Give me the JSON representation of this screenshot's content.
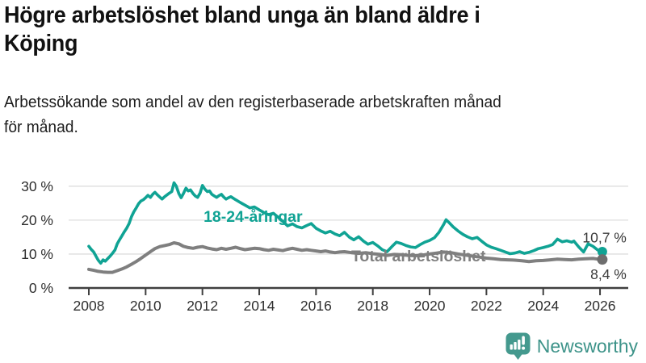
{
  "header": {
    "title_lines": [
      "Högre arbetslöshet bland unga än bland äldre i",
      "Köping"
    ],
    "subtitle_lines": [
      "Arbetssökande som andel av den registerbaserade arbetskraften månad",
      "för månad."
    ]
  },
  "footer": {
    "brand": "Newsworthy",
    "brand_color": "#3D9389",
    "logo_icon": "bar-chart-speech-bubble-icon"
  },
  "chart_data": {
    "type": "line",
    "title": "Högre arbetslöshet bland unga än bland äldre i Köping",
    "xlabel": "",
    "ylabel": "",
    "unit": "%",
    "grid": "horizontal",
    "xlim": [
      2007.3,
      2027.0
    ],
    "ylim": [
      0,
      32
    ],
    "x_ticks": [
      2008,
      2010,
      2012,
      2014,
      2016,
      2018,
      2020,
      2022,
      2024,
      2026
    ],
    "x_tick_labels": [
      "2008",
      "2010",
      "2012",
      "2014",
      "2016",
      "2018",
      "2020",
      "2022",
      "2024",
      "2026"
    ],
    "y_ticks": [
      0,
      10,
      20,
      30
    ],
    "y_tick_labels": [
      "0 %",
      "10 %",
      "20 %",
      "30 %"
    ],
    "colors": {
      "grid": "#dedede",
      "axis": "#3f3f3f",
      "tick_text": "#2e2e2e",
      "end_label_text": "#3a3a3a"
    },
    "series": [
      {
        "name": "18-24-åringar",
        "color": "#10A394",
        "dot_color": "#10A394",
        "end_label": "10,7 %",
        "last_value": 10.7,
        "label_anchor": {
          "year": 2012.04,
          "pct": 19.5
        },
        "points": [
          [
            2008.0,
            12.3
          ],
          [
            2008.08,
            11.4
          ],
          [
            2008.17,
            10.6
          ],
          [
            2008.25,
            9.4
          ],
          [
            2008.33,
            8.2
          ],
          [
            2008.42,
            7.3
          ],
          [
            2008.5,
            8.3
          ],
          [
            2008.58,
            7.9
          ],
          [
            2008.67,
            8.7
          ],
          [
            2008.75,
            9.4
          ],
          [
            2008.83,
            10.2
          ],
          [
            2008.92,
            11.2
          ],
          [
            2009.0,
            13.0
          ],
          [
            2009.08,
            14.2
          ],
          [
            2009.17,
            15.4
          ],
          [
            2009.25,
            16.6
          ],
          [
            2009.33,
            17.6
          ],
          [
            2009.42,
            19.0
          ],
          [
            2009.5,
            21.0
          ],
          [
            2009.58,
            22.4
          ],
          [
            2009.67,
            23.6
          ],
          [
            2009.75,
            24.8
          ],
          [
            2009.83,
            25.6
          ],
          [
            2009.92,
            26.0
          ],
          [
            2010.0,
            26.6
          ],
          [
            2010.08,
            27.3
          ],
          [
            2010.17,
            26.7
          ],
          [
            2010.25,
            27.6
          ],
          [
            2010.33,
            28.2
          ],
          [
            2010.42,
            27.4
          ],
          [
            2010.5,
            26.8
          ],
          [
            2010.58,
            26.2
          ],
          [
            2010.67,
            26.9
          ],
          [
            2010.75,
            27.4
          ],
          [
            2010.83,
            27.9
          ],
          [
            2010.92,
            28.4
          ],
          [
            2011.0,
            31.0
          ],
          [
            2011.08,
            30.0
          ],
          [
            2011.17,
            27.8
          ],
          [
            2011.25,
            26.6
          ],
          [
            2011.33,
            27.8
          ],
          [
            2011.42,
            29.4
          ],
          [
            2011.5,
            28.6
          ],
          [
            2011.58,
            28.9
          ],
          [
            2011.67,
            27.8
          ],
          [
            2011.75,
            27.1
          ],
          [
            2011.83,
            26.7
          ],
          [
            2011.92,
            28.0
          ],
          [
            2012.0,
            30.2
          ],
          [
            2012.08,
            29.2
          ],
          [
            2012.17,
            28.4
          ],
          [
            2012.25,
            28.6
          ],
          [
            2012.33,
            27.6
          ],
          [
            2012.42,
            27.1
          ],
          [
            2012.5,
            26.7
          ],
          [
            2012.58,
            27.2
          ],
          [
            2012.67,
            27.6
          ],
          [
            2012.75,
            26.8
          ],
          [
            2012.83,
            26.2
          ],
          [
            2012.92,
            26.6
          ],
          [
            2013.0,
            26.9
          ],
          [
            2013.17,
            26.0
          ],
          [
            2013.33,
            25.2
          ],
          [
            2013.5,
            24.4
          ],
          [
            2013.67,
            23.6
          ],
          [
            2013.83,
            23.9
          ],
          [
            2014.0,
            23.0
          ],
          [
            2014.17,
            22.2
          ],
          [
            2014.33,
            21.6
          ],
          [
            2014.5,
            22.0
          ],
          [
            2014.67,
            20.8
          ],
          [
            2014.83,
            19.6
          ],
          [
            2015.0,
            18.3
          ],
          [
            2015.17,
            18.9
          ],
          [
            2015.33,
            18.1
          ],
          [
            2015.5,
            17.7
          ],
          [
            2015.67,
            18.4
          ],
          [
            2015.83,
            19.0
          ],
          [
            2016.0,
            17.6
          ],
          [
            2016.17,
            16.8
          ],
          [
            2016.33,
            16.2
          ],
          [
            2016.5,
            16.7
          ],
          [
            2016.67,
            15.9
          ],
          [
            2016.83,
            15.4
          ],
          [
            2017.0,
            16.4
          ],
          [
            2017.17,
            15.0
          ],
          [
            2017.33,
            14.2
          ],
          [
            2017.5,
            15.1
          ],
          [
            2017.67,
            13.8
          ],
          [
            2017.83,
            12.9
          ],
          [
            2018.0,
            13.4
          ],
          [
            2018.17,
            12.4
          ],
          [
            2018.33,
            11.3
          ],
          [
            2018.5,
            10.7
          ],
          [
            2018.67,
            12.2
          ],
          [
            2018.83,
            13.5
          ],
          [
            2019.0,
            13.1
          ],
          [
            2019.17,
            12.5
          ],
          [
            2019.33,
            12.1
          ],
          [
            2019.5,
            11.9
          ],
          [
            2019.67,
            12.8
          ],
          [
            2019.83,
            13.5
          ],
          [
            2020.0,
            14.0
          ],
          [
            2020.17,
            14.8
          ],
          [
            2020.33,
            16.4
          ],
          [
            2020.5,
            18.8
          ],
          [
            2020.58,
            20.1
          ],
          [
            2020.67,
            19.4
          ],
          [
            2020.83,
            18.0
          ],
          [
            2021.0,
            16.8
          ],
          [
            2021.17,
            15.8
          ],
          [
            2021.33,
            15.1
          ],
          [
            2021.5,
            14.5
          ],
          [
            2021.67,
            14.9
          ],
          [
            2021.83,
            13.8
          ],
          [
            2022.0,
            12.7
          ],
          [
            2022.17,
            12.0
          ],
          [
            2022.33,
            11.6
          ],
          [
            2022.5,
            11.1
          ],
          [
            2022.67,
            10.6
          ],
          [
            2022.83,
            10.1
          ],
          [
            2023.0,
            10.3
          ],
          [
            2023.17,
            10.7
          ],
          [
            2023.33,
            10.2
          ],
          [
            2023.5,
            10.5
          ],
          [
            2023.67,
            11.0
          ],
          [
            2023.83,
            11.6
          ],
          [
            2024.0,
            11.9
          ],
          [
            2024.17,
            12.3
          ],
          [
            2024.33,
            12.8
          ],
          [
            2024.5,
            14.4
          ],
          [
            2024.67,
            13.6
          ],
          [
            2024.83,
            13.9
          ],
          [
            2025.0,
            13.5
          ],
          [
            2025.08,
            13.8
          ],
          [
            2025.25,
            12.1
          ],
          [
            2025.42,
            10.6
          ],
          [
            2025.58,
            13.0
          ],
          [
            2025.75,
            12.3
          ],
          [
            2025.92,
            11.2
          ],
          [
            2026.08,
            10.7
          ]
        ]
      },
      {
        "name": "Total arbetslöshet",
        "color": "#7F7F7F",
        "dot_color": "#6E6E6E",
        "end_label": "8,4 %",
        "last_value": 8.4,
        "label_anchor": {
          "year": 2017.24,
          "pct": 7.84
        },
        "points": [
          [
            2008.0,
            5.5
          ],
          [
            2008.17,
            5.2
          ],
          [
            2008.33,
            4.9
          ],
          [
            2008.5,
            4.7
          ],
          [
            2008.67,
            4.6
          ],
          [
            2008.83,
            4.6
          ],
          [
            2009.0,
            5.1
          ],
          [
            2009.17,
            5.6
          ],
          [
            2009.33,
            6.2
          ],
          [
            2009.5,
            7.0
          ],
          [
            2009.67,
            7.8
          ],
          [
            2009.83,
            8.7
          ],
          [
            2010.0,
            9.7
          ],
          [
            2010.17,
            10.7
          ],
          [
            2010.33,
            11.6
          ],
          [
            2010.5,
            12.2
          ],
          [
            2010.67,
            12.5
          ],
          [
            2010.83,
            12.8
          ],
          [
            2011.0,
            13.3
          ],
          [
            2011.17,
            13.0
          ],
          [
            2011.33,
            12.3
          ],
          [
            2011.5,
            11.9
          ],
          [
            2011.67,
            11.7
          ],
          [
            2011.83,
            12.0
          ],
          [
            2012.0,
            12.2
          ],
          [
            2012.17,
            11.8
          ],
          [
            2012.33,
            11.5
          ],
          [
            2012.5,
            11.3
          ],
          [
            2012.67,
            11.7
          ],
          [
            2012.83,
            11.4
          ],
          [
            2013.0,
            11.7
          ],
          [
            2013.17,
            12.0
          ],
          [
            2013.33,
            11.6
          ],
          [
            2013.5,
            11.3
          ],
          [
            2013.67,
            11.5
          ],
          [
            2013.83,
            11.7
          ],
          [
            2014.0,
            11.6
          ],
          [
            2014.17,
            11.3
          ],
          [
            2014.33,
            11.1
          ],
          [
            2014.5,
            11.4
          ],
          [
            2014.67,
            11.2
          ],
          [
            2014.83,
            11.0
          ],
          [
            2015.0,
            11.4
          ],
          [
            2015.17,
            11.7
          ],
          [
            2015.33,
            11.4
          ],
          [
            2015.5,
            11.1
          ],
          [
            2015.67,
            11.3
          ],
          [
            2015.83,
            11.1
          ],
          [
            2016.0,
            10.9
          ],
          [
            2016.17,
            10.7
          ],
          [
            2016.33,
            10.9
          ],
          [
            2016.5,
            10.6
          ],
          [
            2016.67,
            10.4
          ],
          [
            2016.83,
            10.6
          ],
          [
            2017.0,
            10.7
          ],
          [
            2017.25,
            10.4
          ],
          [
            2017.5,
            10.2
          ],
          [
            2017.75,
            10.4
          ],
          [
            2018.0,
            10.1
          ],
          [
            2018.25,
            9.9
          ],
          [
            2018.5,
            9.6
          ],
          [
            2018.75,
            9.9
          ],
          [
            2019.0,
            9.8
          ],
          [
            2019.25,
            9.6
          ],
          [
            2019.5,
            9.5
          ],
          [
            2019.75,
            9.7
          ],
          [
            2020.0,
            10.0
          ],
          [
            2020.25,
            10.3
          ],
          [
            2020.5,
            10.6
          ],
          [
            2020.75,
            10.4
          ],
          [
            2021.0,
            10.0
          ],
          [
            2021.25,
            9.7
          ],
          [
            2021.5,
            9.4
          ],
          [
            2021.75,
            9.1
          ],
          [
            2022.0,
            8.8
          ],
          [
            2022.25,
            8.6
          ],
          [
            2022.5,
            8.4
          ],
          [
            2022.75,
            8.3
          ],
          [
            2023.0,
            8.2
          ],
          [
            2023.25,
            8.0
          ],
          [
            2023.5,
            7.8
          ],
          [
            2023.75,
            8.0
          ],
          [
            2024.0,
            8.1
          ],
          [
            2024.25,
            8.3
          ],
          [
            2024.5,
            8.5
          ],
          [
            2024.75,
            8.4
          ],
          [
            2025.0,
            8.3
          ],
          [
            2025.25,
            8.5
          ],
          [
            2025.5,
            8.6
          ],
          [
            2025.75,
            8.7
          ],
          [
            2025.92,
            8.5
          ],
          [
            2026.08,
            8.4
          ]
        ]
      }
    ]
  }
}
